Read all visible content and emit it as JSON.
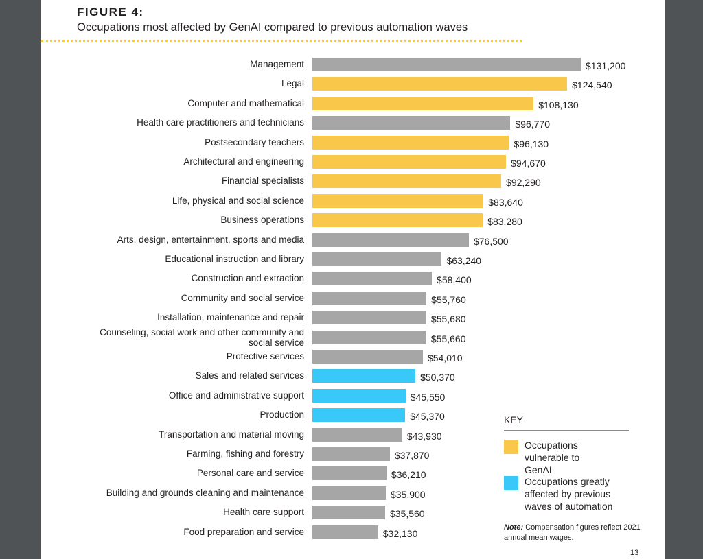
{
  "figure_label": "FIGURE 4:",
  "chart_data": {
    "type": "bar",
    "orientation": "horizontal",
    "title": "Occupations most affected by GenAI compared to previous automation waves",
    "categories": [
      "Management",
      "Legal",
      "Computer and mathematical",
      "Health care practitioners and technicians",
      "Postsecondary teachers",
      "Architectural and engineering",
      "Financial specialists",
      "Life, physical and social science",
      "Business operations",
      "Arts, design, entertainment, sports and media",
      "Educational instruction and library",
      "Construction and extraction",
      "Community and social service",
      "Installation, maintenance and repair",
      "Counseling, social work and other community and social service",
      "Protective services",
      "Sales and related services",
      "Office and administrative support",
      "Production",
      "Transportation and material moving",
      "Farming, fishing and forestry",
      "Personal care and service",
      "Building and grounds cleaning and maintenance",
      "Health care support",
      "Food preparation and service"
    ],
    "values": [
      131200,
      124540,
      108130,
      96770,
      96130,
      94670,
      92290,
      83640,
      83280,
      76500,
      63240,
      58400,
      55760,
      55680,
      55660,
      54010,
      50370,
      45550,
      45370,
      43930,
      37870,
      36210,
      35900,
      35560,
      32130
    ],
    "value_labels": [
      "$131,200",
      "$124,540",
      "$108,130",
      "$96,770",
      "$96,130",
      "$94,670",
      "$92,290",
      "$83,640",
      "$83,280",
      "$76,500",
      "$63,240",
      "$58,400",
      "$55,760",
      "$55,680",
      "$55,660",
      "$54,010",
      "$50,370",
      "$45,550",
      "$45,370",
      "$43,930",
      "$37,870",
      "$36,210",
      "$35,900",
      "$35,560",
      "$32,130"
    ],
    "groups": [
      "other",
      "genai",
      "genai",
      "other",
      "genai",
      "genai",
      "genai",
      "genai",
      "genai",
      "other",
      "other",
      "other",
      "other",
      "other",
      "other",
      "other",
      "automation",
      "automation",
      "automation",
      "other",
      "other",
      "other",
      "other",
      "other",
      "other"
    ],
    "colors": {
      "genai": "#f9c74a",
      "automation": "#38c9f8",
      "other": "#a6a6a6"
    },
    "xlim": [
      0,
      131200
    ],
    "grid": false,
    "legend_placement": "bottom-right"
  },
  "key": {
    "title": "KEY",
    "items": [
      {
        "group": "genai",
        "label": "Occupations vulnerable to GenAI"
      },
      {
        "group": "automation",
        "label": "Occupations greatly affected by previous waves of automation"
      }
    ]
  },
  "note": {
    "prefix": "Note:",
    "text": " Compensation figures reflect 2021 annual mean wages."
  },
  "page_number": "13"
}
